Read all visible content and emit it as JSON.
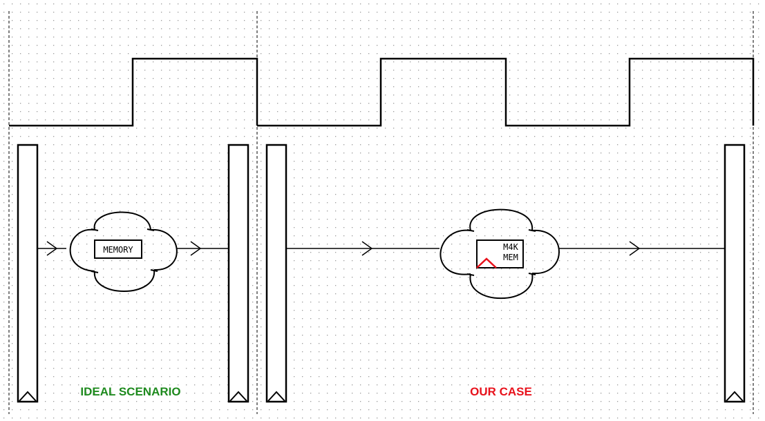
{
  "labels": {
    "memory_block": "MEMORY",
    "m4k_line1": "M4K",
    "m4k_line2": "MEM",
    "ideal_caption": "IDEAL SCENARIO",
    "our_caption": "OUR CASE"
  },
  "colors": {
    "ideal_caption": "#1e8a1e",
    "our_caption": "#e8121c",
    "clock_edge_marker": "#e8121c",
    "grid_dot": "#9a9a9a",
    "stroke": "#000000"
  }
}
